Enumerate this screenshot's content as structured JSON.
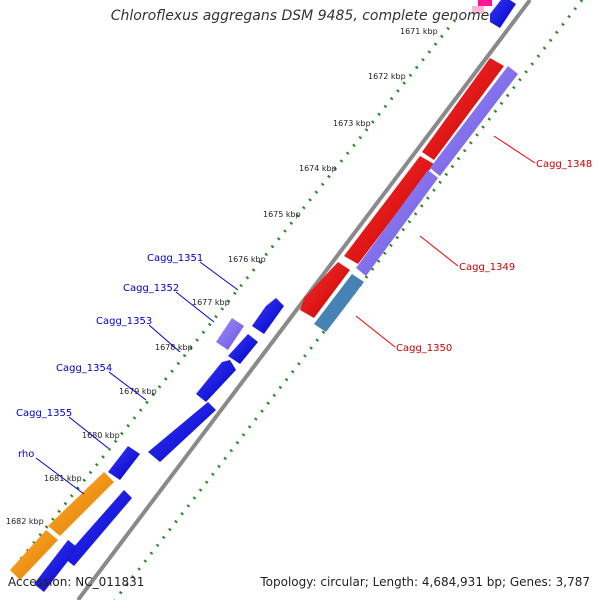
{
  "title": "Chloroflexus aggregans DSM 9485, complete genome",
  "footer": {
    "accession": "Accession: NC_011831",
    "topology": "Topology: circular; Length: 4,684,931 bp; Genes: 3,787"
  },
  "ticks": [
    "1671 kbp",
    "1672 kbp",
    "1673 kbp",
    "1674 kbp",
    "1675 kbp",
    "1676 kbp",
    "1677 kbp",
    "1678 kbp",
    "1679 kbp",
    "1680 kbp",
    "1681 kbp",
    "1682 kbp"
  ],
  "gene_labels_left": [
    "Cagg_1351",
    "Cagg_1352",
    "Cagg_1353",
    "Cagg_1354",
    "Cagg_1355",
    "rho"
  ],
  "gene_labels_right": [
    "Cagg_1348",
    "Cagg_1349",
    "Cagg_1350"
  ],
  "colors": {
    "forward_cds": "#0000ee",
    "reverse_cds": "#ee0000",
    "purple_cds": "#7b68ee",
    "steel_cds": "#4682b4",
    "orange_cds": "#ff9900",
    "pink_cds": "#ff1493",
    "backbone": "#888888",
    "tick_dots": "#228b22",
    "label_blue": "#0000cc",
    "label_red": "#cc0000"
  }
}
